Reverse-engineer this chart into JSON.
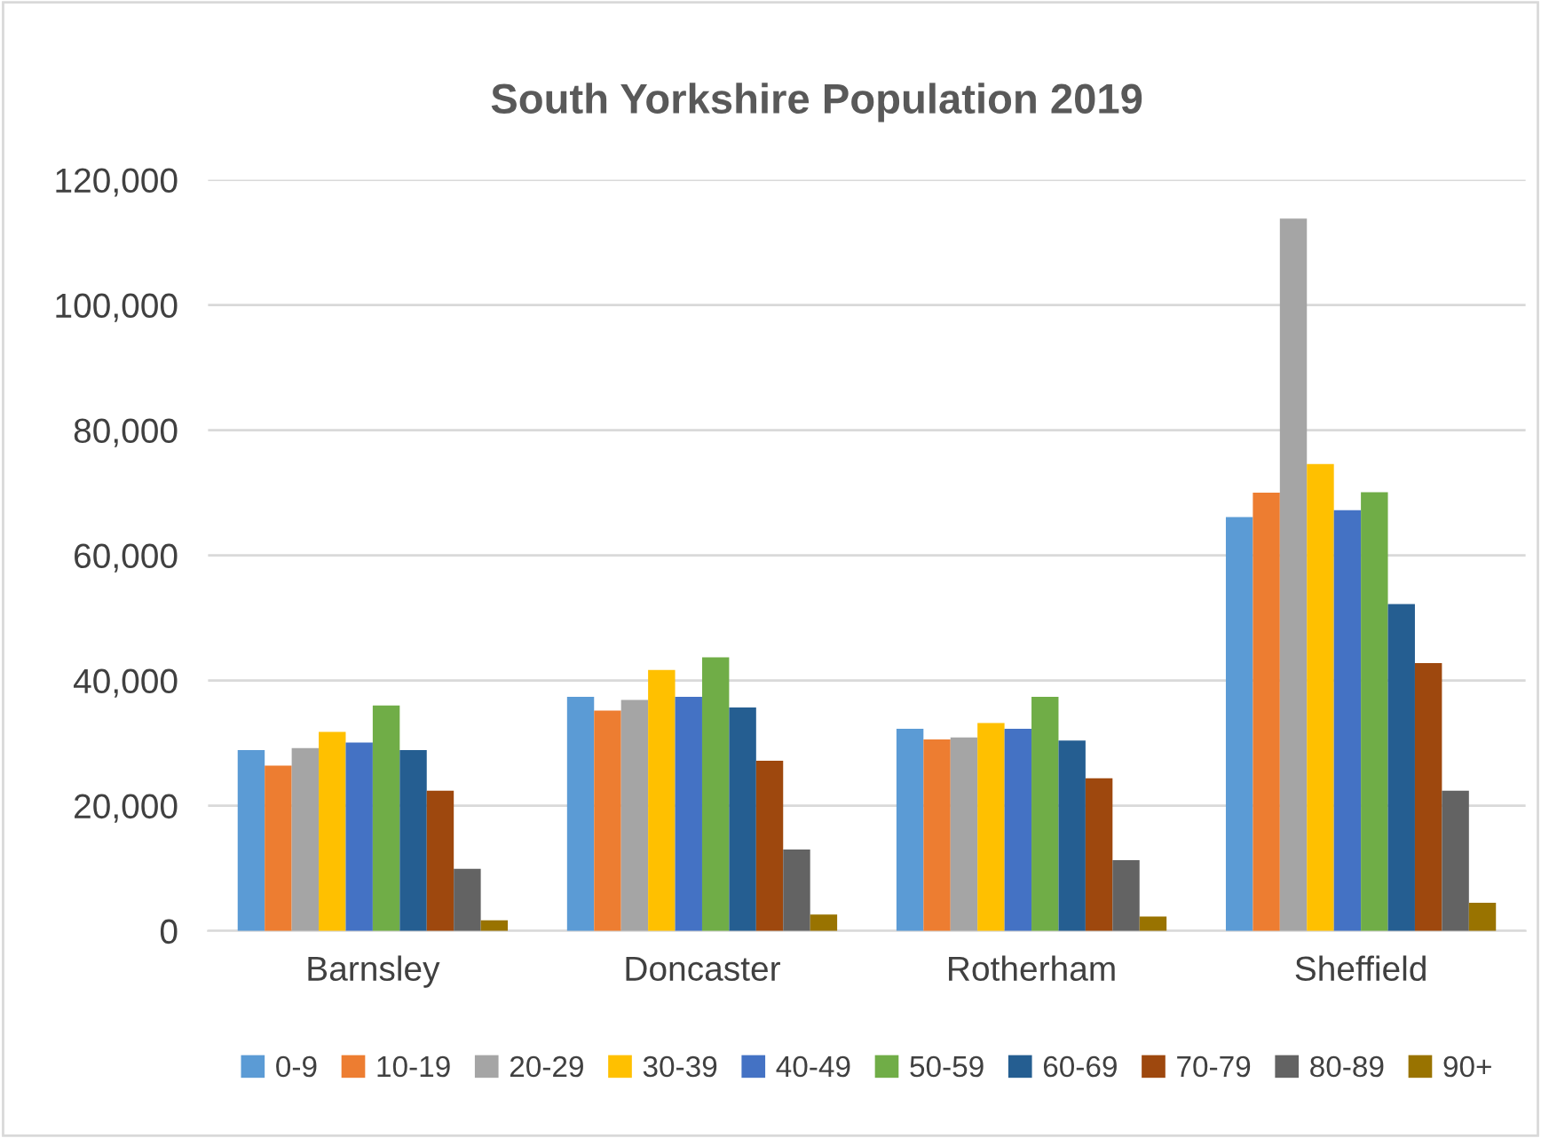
{
  "chart_data": {
    "type": "bar",
    "title": "South Yorkshire Population 2019",
    "categories": [
      "Barnsley",
      "Doncaster",
      "Rotherham",
      "Sheffield"
    ],
    "series": [
      {
        "name": "0-9",
        "color": "#5b9bd5",
        "values": [
          28900,
          37400,
          32300,
          66100
        ]
      },
      {
        "name": "10-19",
        "color": "#ed7d31",
        "values": [
          26400,
          35200,
          30600,
          70000
        ]
      },
      {
        "name": "20-29",
        "color": "#a5a5a5",
        "values": [
          29200,
          36900,
          30900,
          113800
        ]
      },
      {
        "name": "30-39",
        "color": "#ffc000",
        "values": [
          31800,
          41700,
          33200,
          74600
        ]
      },
      {
        "name": "40-49",
        "color": "#4472c4",
        "values": [
          30100,
          37400,
          32300,
          67200
        ]
      },
      {
        "name": "50-59",
        "color": "#70ad47",
        "values": [
          36000,
          43700,
          37400,
          70100
        ]
      },
      {
        "name": "60-69",
        "color": "#255e91",
        "values": [
          28900,
          35700,
          30400,
          52200
        ]
      },
      {
        "name": "70-79",
        "color": "#9e480e",
        "values": [
          22400,
          27200,
          24400,
          42800
        ]
      },
      {
        "name": "80-89",
        "color": "#636363",
        "values": [
          9900,
          13000,
          11300,
          22400
        ]
      },
      {
        "name": "90+",
        "color": "#997300",
        "values": [
          1700,
          2600,
          2300,
          4500
        ]
      }
    ],
    "ylim": [
      0,
      120000
    ],
    "yticks": [
      {
        "value": 0,
        "label": "0"
      },
      {
        "value": 20000,
        "label": "20,000"
      },
      {
        "value": 40000,
        "label": "40,000"
      },
      {
        "value": 60000,
        "label": "60,000"
      },
      {
        "value": 80000,
        "label": "80,000"
      },
      {
        "value": 100000,
        "label": "100,000"
      },
      {
        "value": 120000,
        "label": "120,000"
      }
    ],
    "grid": "y",
    "legend": "bottom"
  }
}
